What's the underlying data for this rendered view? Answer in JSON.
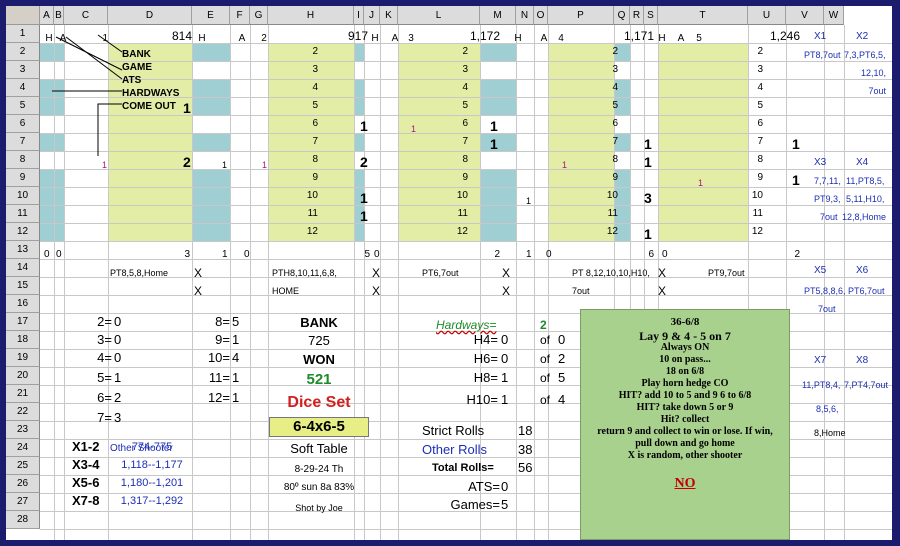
{
  "columns": [
    "A",
    "B",
    "C",
    "D",
    "E",
    "F",
    "G",
    "H",
    "I",
    "J",
    "K",
    "L",
    "M",
    "N",
    "O",
    "P",
    "Q",
    "R",
    "S",
    "T",
    "U",
    "V",
    "W"
  ],
  "rows": [
    "1",
    "2",
    "3",
    "4",
    "5",
    "6",
    "7",
    "8",
    "9",
    "10",
    "11",
    "12",
    "13",
    "14",
    "15",
    "16",
    "17",
    "18",
    "19",
    "20",
    "21",
    "22",
    "23",
    "24",
    "25",
    "26",
    "27",
    "28"
  ],
  "row1": {
    "h": "H",
    "a": "A",
    "blocks": [
      {
        "n": "1",
        "total": "814"
      },
      {
        "n": "2",
        "total": "917"
      },
      {
        "n": "3",
        "total": "1,172"
      },
      {
        "n": "4",
        "total": "1,171"
      },
      {
        "n": "5",
        "total": "1,246"
      }
    ]
  },
  "legend": [
    "BANK",
    "GAME",
    "ATS",
    "HARDWAYS",
    "COME OUT"
  ],
  "point_numbers": [
    "2",
    "3",
    "4",
    "5",
    "6",
    "7",
    "8",
    "9",
    "10",
    "11",
    "12"
  ],
  "marks": {
    "b1_r5": "1",
    "b1_r8": "2",
    "c_r8": "1",
    "e_r8": "1",
    "g_r8": "1",
    "b2_r6": "1",
    "b2_r8": "2",
    "b2_r10": "1",
    "b2_r11": "1",
    "k_r6": "1",
    "b3_r6": "1",
    "b3_r7": "1",
    "m_r10": "1",
    "o_r8": "1",
    "b4_r7": "1",
    "b4_r8": "1",
    "b4_r10": "3",
    "b4_r12": "1",
    "s_r9": "1",
    "b5_r7": "1",
    "b5_r9": "1"
  },
  "row13": {
    "a": "0",
    "b": "0",
    "d": "3",
    "e": "1",
    "f": "0",
    "h": "5",
    "i": "0",
    "l": "2",
    "m": "1",
    "n": "0",
    "p": "6",
    "q": "0",
    "t": "2"
  },
  "row14": {
    "d": "PT8,5,8,Home",
    "e": "X",
    "h": "PTH8,10,11,6,8,",
    "i": "X",
    "l": "PT6,7out",
    "m": "X",
    "p": "PT 8,12,10,10,H10,",
    "q": "X",
    "t": "PT9,7out"
  },
  "row15": {
    "e": "X",
    "h": "HOME",
    "i": "X",
    "m": "X",
    "p": "7out",
    "q": "X"
  },
  "side": {
    "x1": "X1",
    "x2": "X2",
    "x1v": "PT8,7out",
    "x2v1": "7,3,PT6,5,",
    "x2v2": "12,10,",
    "x2v3": "7out",
    "x3": "X3",
    "x4": "X4",
    "x3v1": "7,7,11,",
    "x3v2": "PT9,3,",
    "x3v3": "7out",
    "x4v1": "11,PT8,5,",
    "x4v2": "5,11,H10,",
    "x4v3": "12,8,Home",
    "x5": "X5",
    "x6": "X6",
    "x5v1": "PT5,8,8,6,",
    "x5v2": "7out",
    "x6v1": "PT6,7out",
    "x7": "X7",
    "x8": "X8",
    "x7v1": "11,PT8,4,",
    "x7v2": "8,5,6,",
    "x7v3": "8,Home",
    "x8v1": "7,PT4,7out"
  },
  "rolls": [
    {
      "k": "2=",
      "v": "0"
    },
    {
      "k": "3=",
      "v": "0"
    },
    {
      "k": "4=",
      "v": "0"
    },
    {
      "k": "5=",
      "v": "1"
    },
    {
      "k": "6=",
      "v": "2"
    },
    {
      "k": "7=",
      "v": "3"
    }
  ],
  "rolls2": [
    {
      "k": "8=",
      "v": "5"
    },
    {
      "k": "9=",
      "v": "1"
    },
    {
      "k": "10=",
      "v": "4"
    },
    {
      "k": "11=",
      "v": "1"
    },
    {
      "k": "12=",
      "v": "1"
    }
  ],
  "summary": {
    "bank_label": "BANK",
    "bank_value": "725",
    "won_label": "WON",
    "won_value": "521",
    "dice_set_label": "Dice Set",
    "dice_set_value": "6-4x6-5",
    "soft_table": "Soft Table",
    "date": "8-29-24 Th",
    "weather": "80º sun 8a 83%",
    "shot_by": "Shot by Joe",
    "other_shooter": "Other  Shooter"
  },
  "shooters": [
    {
      "k": "X1-2",
      "v": "774-775"
    },
    {
      "k": "X3-4",
      "v": "1,118--1,177"
    },
    {
      "k": "X5-6",
      "v": "1,180--1,201"
    },
    {
      "k": "X7-8",
      "v": "1,317--1,292"
    }
  ],
  "hardways": {
    "label": "Hardways=",
    "count": "2",
    "items": [
      {
        "k": "H4=",
        "v": "0",
        "of": "of",
        "tot": "0"
      },
      {
        "k": "H6=",
        "v": "0",
        "of": "of",
        "tot": "2"
      },
      {
        "k": "H8=",
        "v": "1",
        "of": "of",
        "tot": "5"
      },
      {
        "k": "H10=",
        "v": "1",
        "of": "of",
        "tot": "4"
      }
    ]
  },
  "stats": {
    "strict_label": "Strict Rolls",
    "strict": "18",
    "other_label": "Other Rolls",
    "other": "38",
    "total_label": "Total Rolls=",
    "total": "56",
    "ats_label": "ATS=",
    "ats": "0",
    "games_label": "Games=",
    "games": "5"
  },
  "note": {
    "lines": [
      "36-6/8",
      "Lay 9 & 4 - 5 on 7",
      "Always ON",
      "10 on pass...",
      "18 on 6/8",
      "Play horn hedge CO",
      "HIT?  add 10 to 5 and 9 6 to 6/8",
      "HIT? take down 5 or 9",
      "Hit? collect",
      "return 9 and collect to win or lose. If win,",
      "pull down and go home",
      "X is random, other shooter"
    ],
    "no": "NO"
  },
  "colors": {
    "teal": "#9fcfd2",
    "yellow": "#e3eda5",
    "note_green": "#a9d18e",
    "frame": "#1c1c6e"
  }
}
